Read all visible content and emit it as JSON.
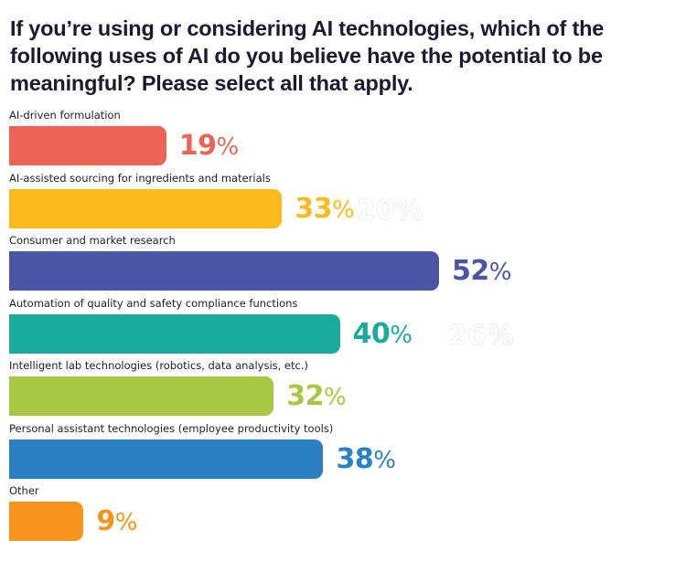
{
  "chart_data": {
    "type": "bar",
    "orientation": "horizontal",
    "title": "If you’re using or considering AI technologies, which of the following uses of AI do you believe have the potential to be meaningful? Please select all that apply.",
    "xlabel": "",
    "ylabel": "",
    "xlim": [
      0,
      100
    ],
    "unit": "%",
    "grid": false,
    "legend": "none",
    "categories": [
      "AI-driven formulation",
      "AI-assisted sourcing for ingredients and materials",
      "Consumer and market research",
      "Automation of quality and safety compliance functions",
      "Intelligent lab technologies (robotics, data analysis, etc.)",
      "Personal assistant technologies (employee productivity tools)",
      "Other"
    ],
    "values": [
      19,
      33,
      52,
      40,
      32,
      38,
      9
    ],
    "value_labels": [
      "19",
      "33",
      "52",
      "40",
      "32",
      "38",
      "9"
    ],
    "percent_sign": "%",
    "colors": [
      "#ec6455",
      "#fbbb1f",
      "#4b55a4",
      "#1aab9c",
      "#a8c845",
      "#2b80c3",
      "#f7941d"
    ],
    "faint_overlay_labels": [
      {
        "row": 1,
        "text": "20%"
      },
      {
        "row": 3,
        "text": "26%"
      }
    ]
  }
}
